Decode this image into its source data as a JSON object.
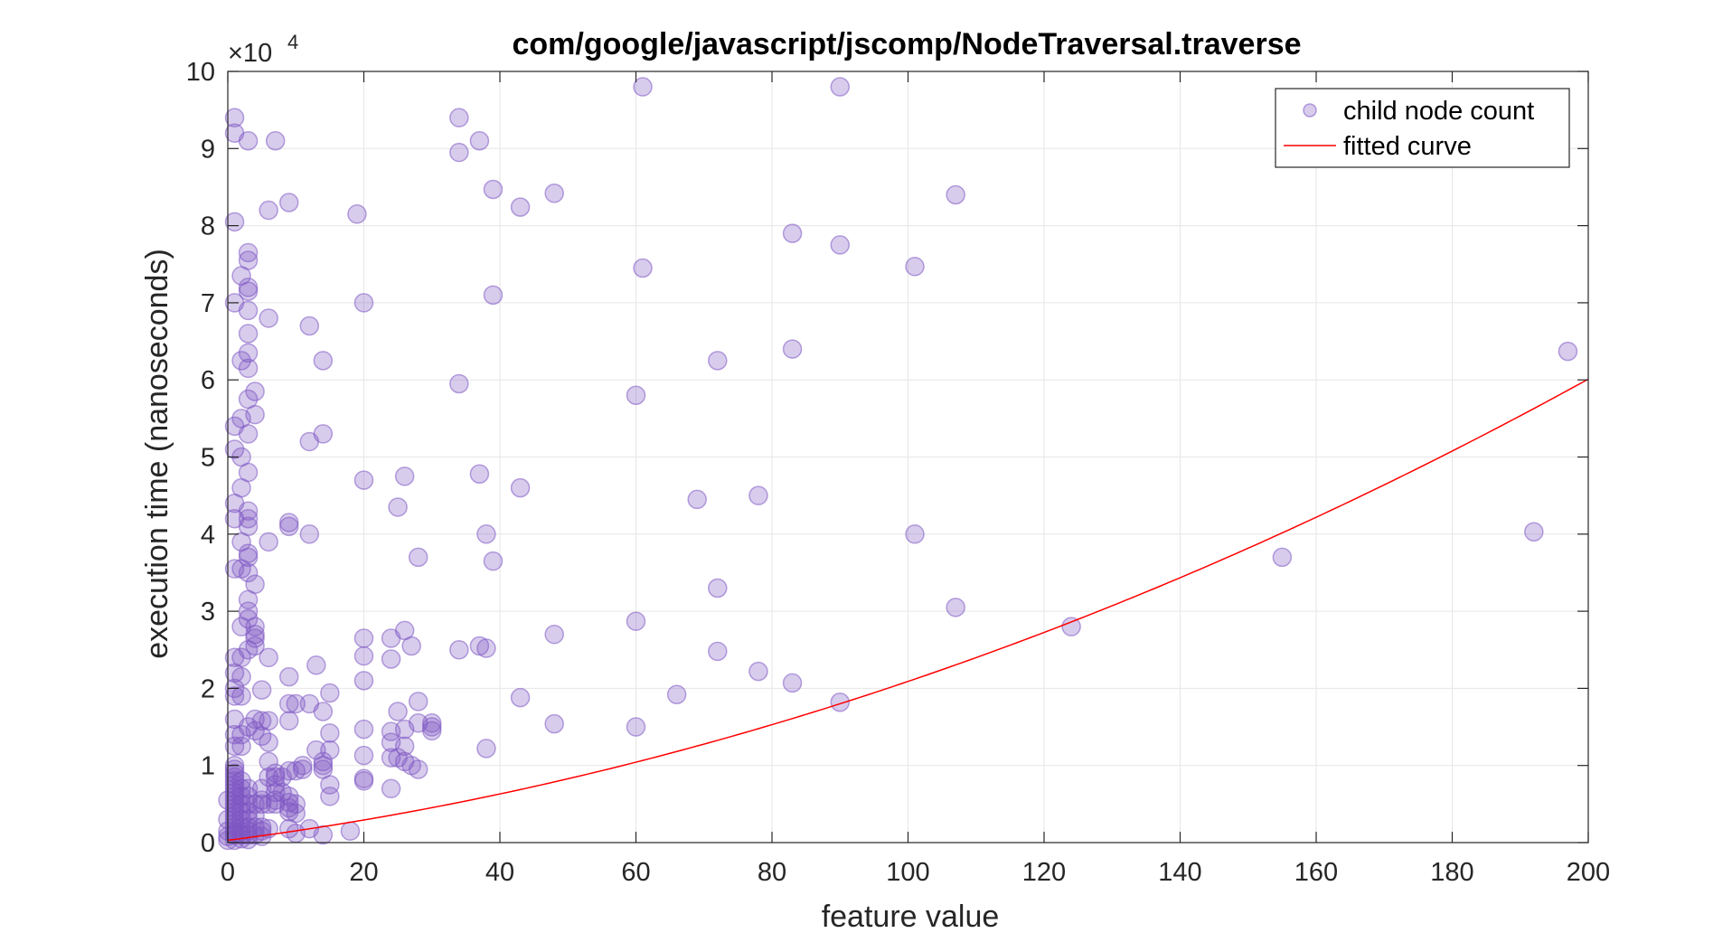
{
  "chart_data": {
    "type": "scatter",
    "title": "com/google/javascript/jscomp/NodeTraversal.traverse",
    "xlabel": "feature value",
    "ylabel": "execution time (nanoseconds)",
    "y_exponent_label": "×10",
    "y_exponent_power": "4",
    "xlim": [
      0,
      200
    ],
    "ylim": [
      0,
      100000
    ],
    "x_ticks": [
      0,
      20,
      40,
      60,
      80,
      100,
      120,
      140,
      160,
      180,
      200
    ],
    "y_ticks": [
      0,
      1,
      2,
      3,
      4,
      5,
      6,
      7,
      8,
      9,
      10
    ],
    "grid": true,
    "legend_position": "top-right",
    "colors": {
      "points": "#7e57c2",
      "curve": "#ff0000"
    },
    "series": [
      {
        "name": "child node count",
        "type": "scatter",
        "points": [
          [
            1,
            94000
          ],
          [
            1,
            92000
          ],
          [
            3,
            91000
          ],
          [
            7,
            91000
          ],
          [
            1,
            80500
          ],
          [
            6,
            82000
          ],
          [
            9,
            83000
          ],
          [
            19,
            81500
          ],
          [
            34,
            94000
          ],
          [
            37,
            91000
          ],
          [
            34,
            89500
          ],
          [
            39,
            84700
          ],
          [
            43,
            82400
          ],
          [
            48,
            84200
          ],
          [
            61,
            98000
          ],
          [
            90,
            98000
          ],
          [
            107,
            84000
          ],
          [
            83,
            79000
          ],
          [
            90,
            77500
          ],
          [
            101,
            74700
          ],
          [
            61,
            74500
          ],
          [
            39,
            71000
          ],
          [
            20,
            70000
          ],
          [
            1,
            70000
          ],
          [
            3,
            76500
          ],
          [
            3,
            75500
          ],
          [
            2,
            73500
          ],
          [
            3,
            72000
          ],
          [
            3,
            71500
          ],
          [
            3,
            69000
          ],
          [
            6,
            68000
          ],
          [
            12,
            67000
          ],
          [
            3,
            66000
          ],
          [
            3,
            63500
          ],
          [
            2,
            62500
          ],
          [
            3,
            61500
          ],
          [
            14,
            62500
          ],
          [
            72,
            62500
          ],
          [
            83,
            64000
          ],
          [
            197,
            63700
          ],
          [
            4,
            58500
          ],
          [
            3,
            57500
          ],
          [
            2,
            55000
          ],
          [
            4,
            55500
          ],
          [
            1,
            54000
          ],
          [
            3,
            53000
          ],
          [
            14,
            53000
          ],
          [
            12,
            52000
          ],
          [
            34,
            59500
          ],
          [
            60,
            58000
          ],
          [
            1,
            51000
          ],
          [
            2,
            50000
          ],
          [
            3,
            48000
          ],
          [
            2,
            46000
          ],
          [
            20,
            47000
          ],
          [
            26,
            47500
          ],
          [
            37,
            47800
          ],
          [
            43,
            46000
          ],
          [
            25,
            43500
          ],
          [
            1,
            44000
          ],
          [
            3,
            43000
          ],
          [
            3,
            42000
          ],
          [
            1,
            42000
          ],
          [
            9,
            41500
          ],
          [
            9,
            41000
          ],
          [
            3,
            41000
          ],
          [
            12,
            40000
          ],
          [
            6,
            39000
          ],
          [
            2,
            39000
          ],
          [
            3,
            37500
          ],
          [
            3,
            37000
          ],
          [
            38,
            40000
          ],
          [
            39,
            36500
          ],
          [
            28,
            37000
          ],
          [
            69,
            44500
          ],
          [
            78,
            45000
          ],
          [
            101,
            40000
          ],
          [
            192,
            40300
          ],
          [
            155,
            37000
          ],
          [
            1,
            35500
          ],
          [
            2,
            35500
          ],
          [
            3,
            35000
          ],
          [
            4,
            33500
          ],
          [
            3,
            31500
          ],
          [
            72,
            33000
          ],
          [
            107,
            30500
          ],
          [
            124,
            28000
          ],
          [
            60,
            28700
          ],
          [
            3,
            30000
          ],
          [
            3,
            29000
          ],
          [
            2,
            28000
          ],
          [
            4,
            28000
          ],
          [
            4,
            27000
          ],
          [
            4,
            26500
          ],
          [
            4,
            25500
          ],
          [
            3,
            25000
          ],
          [
            26,
            27500
          ],
          [
            24,
            26500
          ],
          [
            20,
            26500
          ],
          [
            27,
            25500
          ],
          [
            37,
            25500
          ],
          [
            38,
            25200
          ],
          [
            34,
            25000
          ],
          [
            48,
            27000
          ],
          [
            72,
            24800
          ],
          [
            1,
            24000
          ],
          [
            2,
            24000
          ],
          [
            6,
            24000
          ],
          [
            20,
            24200
          ],
          [
            24,
            23800
          ],
          [
            13,
            23000
          ],
          [
            78,
            22200
          ],
          [
            1,
            22000
          ],
          [
            2,
            21500
          ],
          [
            9,
            21500
          ],
          [
            20,
            21000
          ],
          [
            83,
            20700
          ],
          [
            1,
            20000
          ],
          [
            5,
            19800
          ],
          [
            1,
            19000
          ],
          [
            2,
            19000
          ],
          [
            15,
            19400
          ],
          [
            66,
            19200
          ],
          [
            90,
            18200
          ],
          [
            43,
            18800
          ],
          [
            28,
            18300
          ],
          [
            10,
            18000
          ],
          [
            9,
            18000
          ],
          [
            12,
            18000
          ],
          [
            14,
            17000
          ],
          [
            25,
            17000
          ],
          [
            1,
            16000
          ],
          [
            4,
            16000
          ],
          [
            5,
            15800
          ],
          [
            3,
            15000
          ],
          [
            6,
            15800
          ],
          [
            9,
            15800
          ],
          [
            28,
            15500
          ],
          [
            30,
            15500
          ],
          [
            30,
            15000
          ],
          [
            30,
            14500
          ],
          [
            48,
            15400
          ],
          [
            60,
            15000
          ],
          [
            20,
            14700
          ],
          [
            24,
            14400
          ],
          [
            26,
            14700
          ],
          [
            1,
            14000
          ],
          [
            2,
            14000
          ],
          [
            4,
            14500
          ],
          [
            5,
            13800
          ],
          [
            15,
            14200
          ],
          [
            6,
            13000
          ],
          [
            24,
            13000
          ],
          [
            26,
            12500
          ],
          [
            38,
            12200
          ],
          [
            1,
            12500
          ],
          [
            2,
            12500
          ],
          [
            13,
            12000
          ],
          [
            15,
            12000
          ],
          [
            20,
            11300
          ],
          [
            24,
            11000
          ],
          [
            25,
            11000
          ],
          [
            26,
            10500
          ],
          [
            27,
            10000
          ],
          [
            28,
            9500
          ],
          [
            6,
            10500
          ],
          [
            11,
            10000
          ],
          [
            11,
            9500
          ],
          [
            14,
            10000
          ],
          [
            14,
            10500
          ],
          [
            14,
            9500
          ],
          [
            9,
            9300
          ],
          [
            10,
            9300
          ],
          [
            7,
            9000
          ],
          [
            6,
            8500
          ],
          [
            7,
            8500
          ],
          [
            8,
            8500
          ],
          [
            20,
            8300
          ],
          [
            20,
            8000
          ],
          [
            7,
            7500
          ],
          [
            15,
            7500
          ],
          [
            5,
            7000
          ],
          [
            24,
            7000
          ],
          [
            7,
            6500
          ],
          [
            8,
            6500
          ],
          [
            9,
            6000
          ],
          [
            15,
            6000
          ],
          [
            5,
            5500
          ],
          [
            7,
            5500
          ],
          [
            9,
            5200
          ],
          [
            10,
            5000
          ],
          [
            5,
            5000
          ],
          [
            6,
            5000
          ],
          [
            7,
            5000
          ],
          [
            9,
            4500
          ],
          [
            9,
            4000
          ],
          [
            10,
            3800
          ],
          [
            1,
            10000
          ],
          [
            1,
            9500
          ],
          [
            1,
            9000
          ],
          [
            1,
            8500
          ],
          [
            1,
            8000
          ],
          [
            1,
            7500
          ],
          [
            1,
            7000
          ],
          [
            1,
            6500
          ],
          [
            1,
            6000
          ],
          [
            1,
            5500
          ],
          [
            1,
            5000
          ],
          [
            1,
            4500
          ],
          [
            1,
            4000
          ],
          [
            1,
            3500
          ],
          [
            1,
            3000
          ],
          [
            1,
            2500
          ],
          [
            1,
            2000
          ],
          [
            1,
            1500
          ],
          [
            1,
            1000
          ],
          [
            2,
            8000
          ],
          [
            2,
            7000
          ],
          [
            2,
            6000
          ],
          [
            2,
            5000
          ],
          [
            2,
            4000
          ],
          [
            2,
            3000
          ],
          [
            2,
            2000
          ],
          [
            2,
            1000
          ],
          [
            3,
            7000
          ],
          [
            3,
            6000
          ],
          [
            3,
            5000
          ],
          [
            3,
            4000
          ],
          [
            3,
            3000
          ],
          [
            3,
            2000
          ],
          [
            3,
            1500
          ],
          [
            3,
            1000
          ],
          [
            4,
            5000
          ],
          [
            4,
            3500
          ],
          [
            4,
            2000
          ],
          [
            4,
            1000
          ],
          [
            0,
            5500
          ],
          [
            0,
            3000
          ],
          [
            0,
            1500
          ],
          [
            0,
            800
          ],
          [
            0,
            300
          ],
          [
            1,
            300
          ],
          [
            2,
            500
          ],
          [
            3,
            400
          ],
          [
            5,
            1500
          ],
          [
            5,
            800
          ],
          [
            9,
            1800
          ],
          [
            10,
            1200
          ],
          [
            12,
            1800
          ],
          [
            14,
            1000
          ],
          [
            18,
            1500
          ],
          [
            5,
            2000
          ],
          [
            6,
            1800
          ],
          [
            2,
            1500
          ],
          [
            1,
            1200
          ]
        ]
      },
      {
        "name": "fitted curve",
        "type": "line",
        "model": "polynomial",
        "coefficients": [
          300,
          113,
          0.93
        ]
      }
    ]
  }
}
